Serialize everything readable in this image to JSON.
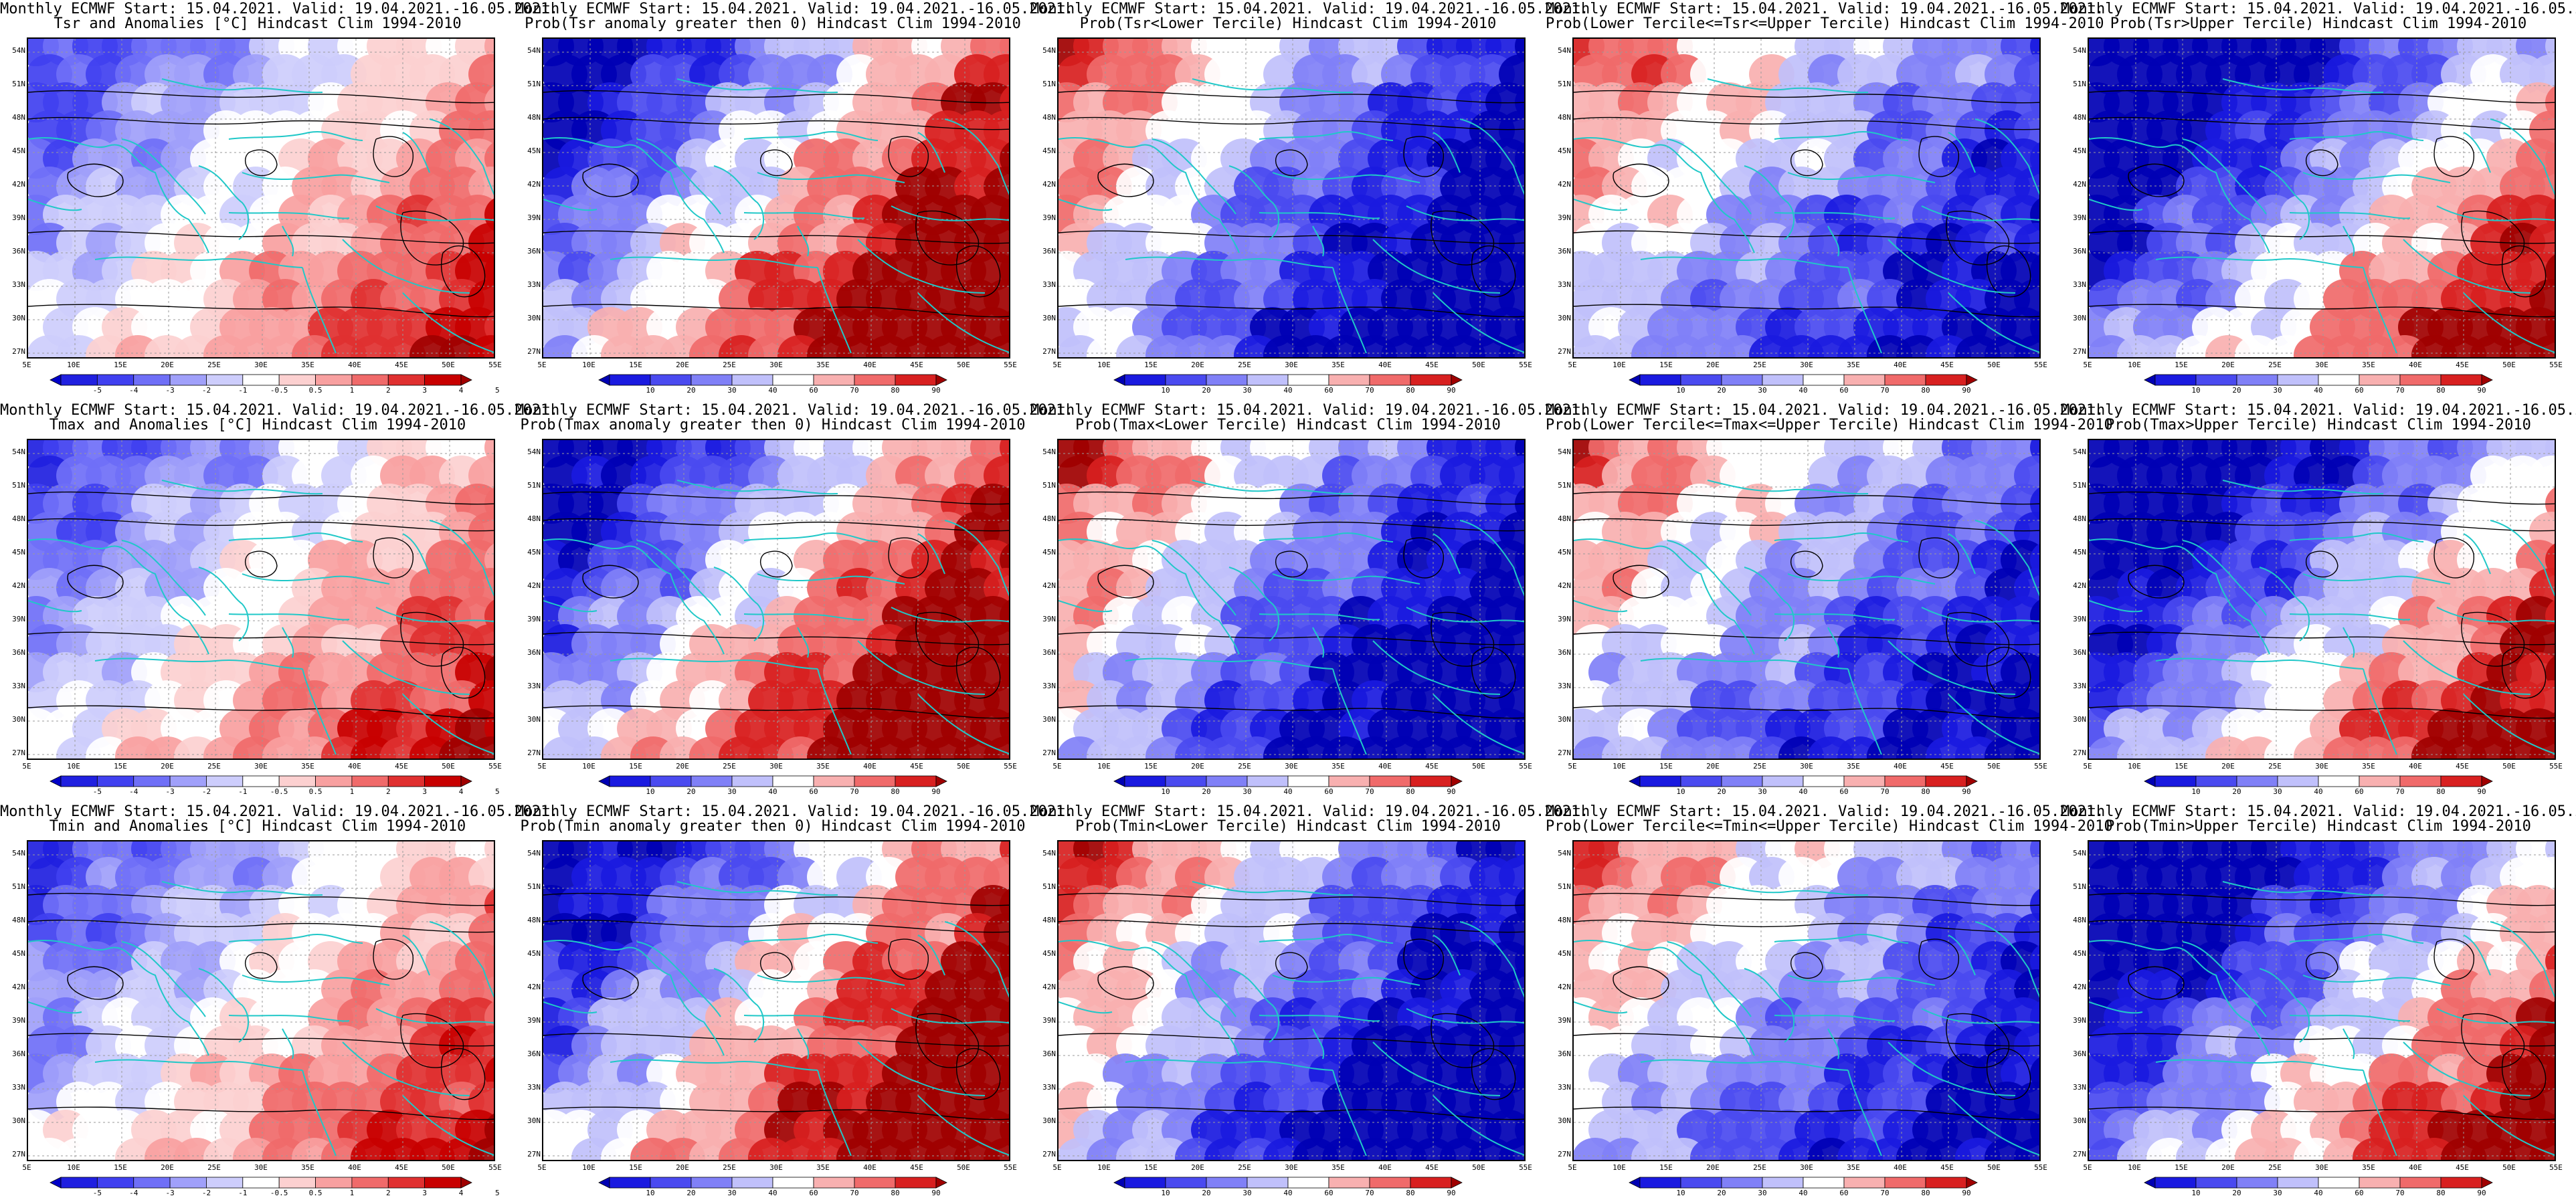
{
  "header_common": "Monthly ECMWF Start: 15.04.2021. Valid: 19.04.2021.-16.05.2021.",
  "lat_labels": [
    "54N",
    "51N",
    "48N",
    "45N",
    "42N",
    "39N",
    "36N",
    "33N",
    "30N",
    "27N"
  ],
  "lon_labels": [
    "5E",
    "10E",
    "15E",
    "20E",
    "25E",
    "30E",
    "35E",
    "40E",
    "45E",
    "50E",
    "55E"
  ],
  "colorbars": {
    "anomaly": {
      "ticks": [
        "-5",
        "-4",
        "-3",
        "-2",
        "-1",
        "-0.5",
        "0.5",
        "1",
        "2",
        "3",
        "4",
        "5"
      ],
      "colors": [
        "#0000c8",
        "#2020e0",
        "#4040f0",
        "#6f6ff7",
        "#a0a0fa",
        "#cdcdfc",
        "#ffffff",
        "#fcd0d0",
        "#f8a0a0",
        "#f06a6a",
        "#e03030",
        "#c80000",
        "#a00000"
      ]
    },
    "probability": {
      "ticks": [
        "10",
        "20",
        "30",
        "40",
        "60",
        "70",
        "80",
        "90"
      ],
      "colors": [
        "#0000b4",
        "#1a1ae0",
        "#4a4af0",
        "#8080f7",
        "#c0c0fb",
        "#ffffff",
        "#f8b0b0",
        "#f06a6a",
        "#d82020",
        "#a00000"
      ]
    }
  },
  "palette": {
    "coast": "#20c8c8",
    "contour": "#000000"
  },
  "panels": [
    {
      "subtitle": "Tsr and Anomalies [°C] Hindcast Clim 1994-2010",
      "bar": "anomaly"
    },
    {
      "subtitle": "Prob(Tsr anomaly greater then 0) Hindcast Clim 1994-2010",
      "bar": "probability"
    },
    {
      "subtitle": "Prob(Tsr<Lower Tercile) Hindcast Clim 1994-2010",
      "bar": "probability"
    },
    {
      "subtitle": "Prob(Lower Tercile<=Tsr<=Upper Tercile) Hindcast Clim 1994-2010",
      "bar": "probability"
    },
    {
      "subtitle": "Prob(Tsr>Upper Tercile) Hindcast Clim 1994-2010",
      "bar": "probability"
    },
    {
      "subtitle": "Tmax and Anomalies [°C] Hindcast Clim 1994-2010",
      "bar": "anomaly"
    },
    {
      "subtitle": "Prob(Tmax anomaly greater then 0) Hindcast Clim 1994-2010",
      "bar": "probability"
    },
    {
      "subtitle": "Prob(Tmax<Lower Tercile) Hindcast Clim 1994-2010",
      "bar": "probability"
    },
    {
      "subtitle": "Prob(Lower Tercile<=Tmax<=Upper Tercile) Hindcast Clim 1994-2010",
      "bar": "probability"
    },
    {
      "subtitle": "Prob(Tmax>Upper Tercile) Hindcast Clim 1994-2010",
      "bar": "probability"
    },
    {
      "subtitle": "Tmin and Anomalies [°C] Hindcast Clim 1994-2010",
      "bar": "anomaly"
    },
    {
      "subtitle": "Prob(Tmin anomaly greater then 0) Hindcast Clim 1994-2010",
      "bar": "probability"
    },
    {
      "subtitle": "Prob(Tmin<Lower Tercile) Hindcast Clim 1994-2010",
      "bar": "probability"
    },
    {
      "subtitle": "Prob(Lower Tercile<=Tmin<=Upper Tercile) Hindcast Clim 1994-2010",
      "bar": "probability"
    },
    {
      "subtitle": "Prob(Tmin>Upper Tercile) Hindcast Clim 1994-2010",
      "bar": "probability"
    }
  ]
}
